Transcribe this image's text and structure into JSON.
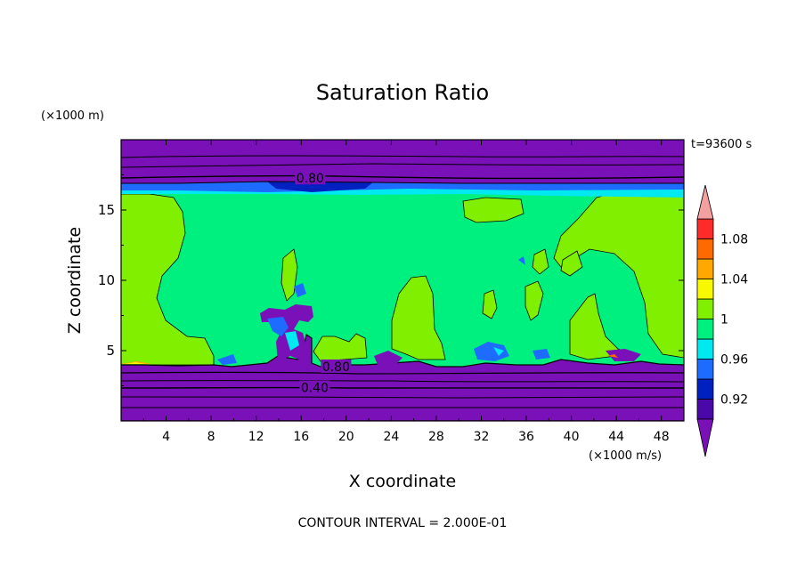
{
  "chart_data": {
    "type": "heatmap",
    "title": "Saturation Ratio",
    "xlabel": "X coordinate",
    "ylabel": "Z coordinate",
    "x_unit": "(×1000 m/s)",
    "y_unit": "(×1000 m)",
    "time_label": "t=93600 s",
    "footer": "CONTOUR INTERVAL = 2.000E-01",
    "xlim": [
      0,
      50
    ],
    "ylim": [
      0,
      20
    ],
    "x_ticks": [
      4,
      8,
      12,
      16,
      20,
      24,
      28,
      32,
      36,
      40,
      44,
      48
    ],
    "y_ticks": [
      5,
      10,
      15
    ],
    "colorbar": {
      "levels": [
        0.9,
        0.92,
        0.94,
        0.96,
        0.98,
        1.0,
        1.02,
        1.04,
        1.06,
        1.08,
        1.1
      ],
      "tick_labels": [
        "0.92",
        "0.96",
        "1",
        "1.04",
        "1.08"
      ],
      "tick_values": [
        0.92,
        0.96,
        1.0,
        1.04,
        1.08
      ],
      "colors": [
        "#4a08a8",
        "#0020c0",
        "#1e6bff",
        "#00e8f0",
        "#00f07f",
        "#80f000",
        "#f8f800",
        "#ffa800",
        "#ff6a00",
        "#ff2a2a"
      ],
      "under_color": "#7a10b8",
      "over_color": "#f4a0a0"
    },
    "contour_labels": [
      {
        "text": "0.80",
        "x": 16.8,
        "y": 17.2
      },
      {
        "text": "0.80",
        "x": 19.1,
        "y": 3.8
      },
      {
        "text": "0.40",
        "x": 17.2,
        "y": 2.3
      }
    ]
  }
}
